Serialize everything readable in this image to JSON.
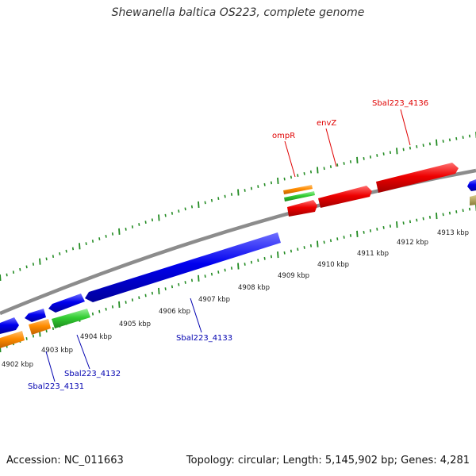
{
  "title": "Shewanella baltica OS223, complete genome",
  "footer": {
    "accession": "Accession: NC_011663",
    "summary": "Topology: circular; Length: 5,145,902 bp; Genes: 4,281"
  },
  "kbp_labels": [
    "4902 kbp",
    "4903 kbp",
    "4904 kbp",
    "4905 kbp",
    "4906 kbp",
    "4907 kbp",
    "4908 kbp",
    "4909 kbp",
    "4910 kbp",
    "4911 kbp",
    "4912 kbp",
    "4913 kbp"
  ],
  "gene_labels": [
    {
      "text": "ompR",
      "color": "#e00000"
    },
    {
      "text": "envZ",
      "color": "#e00000"
    },
    {
      "text": "Sbal223_4136",
      "color": "#e00000"
    },
    {
      "text": "Sbal223_4133",
      "color": "#0000b0"
    },
    {
      "text": "Sbal223_4132",
      "color": "#0000b0"
    },
    {
      "text": "Sbal223_4131",
      "color": "#0000b0"
    }
  ],
  "colors": {
    "backbone": "#8c8c8c",
    "ticks": "#228b22",
    "blue": "#0000ee",
    "red": "#ee0000",
    "orange": "#ff8c00",
    "green": "#32cd32",
    "khaki": "#a89a4a"
  }
}
